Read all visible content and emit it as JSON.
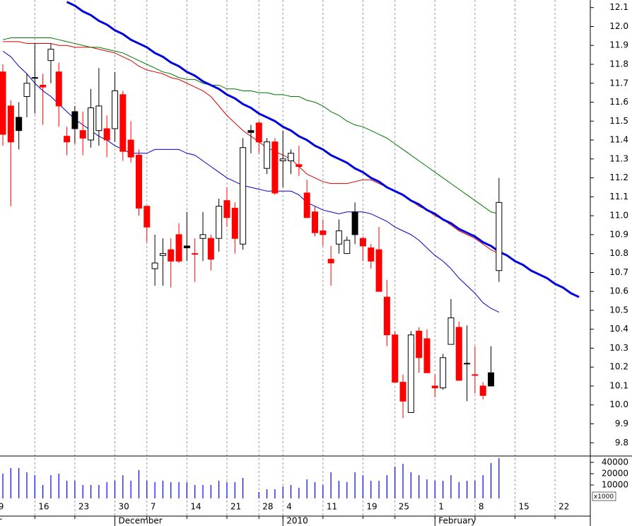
{
  "chart_data": {
    "type": "candlestick",
    "categories": [
      "9",
      null,
      null,
      null,
      null,
      "16",
      null,
      null,
      null,
      null,
      "23",
      null,
      null,
      null,
      null,
      "30",
      null,
      null,
      null,
      "7",
      null,
      null,
      null,
      null,
      "14",
      null,
      null,
      null,
      null,
      "21",
      null,
      null,
      null,
      "28",
      null,
      null,
      "4",
      null,
      null,
      null,
      null,
      "11",
      null,
      null,
      null,
      null,
      "19",
      null,
      null,
      null,
      "25",
      null,
      null,
      null,
      null,
      "1",
      null,
      null,
      null,
      null,
      "8",
      null,
      null,
      null,
      null,
      "15",
      null,
      null,
      null,
      null,
      "22",
      null,
      null,
      null,
      null
    ],
    "months": [
      "r",
      null,
      null,
      null,
      null,
      null,
      null,
      null,
      null,
      null,
      null,
      null,
      null,
      null,
      null,
      "December",
      null,
      null,
      null,
      null,
      null,
      null,
      null,
      null,
      null,
      null,
      null,
      null,
      null,
      null,
      null,
      null,
      null,
      null,
      null,
      null,
      "2010",
      null,
      null,
      null,
      null,
      null,
      null,
      null,
      null,
      null,
      null,
      null,
      null,
      null,
      null,
      null,
      null,
      null,
      null,
      "February",
      null,
      null,
      null,
      null,
      null,
      null,
      null,
      null,
      null,
      null,
      null,
      null,
      null,
      null,
      null,
      null,
      null,
      null,
      null
    ],
    "open": [
      null,
      11.76,
      11.58,
      11.52,
      11.63,
      11.73,
      11.69,
      11.82,
      11.76,
      11.42,
      11.55,
      11.45,
      11.4,
      11.45,
      11.46,
      11.46,
      11.64,
      11.4,
      11.32,
      11.05,
      10.72,
      10.79,
      10.82,
      10.9,
      10.84,
      10.8,
      10.88,
      10.88,
      10.88,
      11.08,
      11.04,
      10.85,
      11.45,
      11.49,
      11.25,
      11.39,
      11.29,
      11.29,
      11.27,
      11.12,
      11.02,
      10.92,
      10.77,
      10.85,
      10.8,
      11.02,
      10.88,
      10.83,
      10.82,
      10.57,
      10.37,
      10.12,
      9.96,
      10.39,
      10.35,
      10.1,
      10.09,
      10.32,
      10.41,
      10.22,
      10.16,
      10.1,
      10.17,
      10.71,
      null,
      null,
      null,
      null,
      null,
      null,
      null,
      null,
      null,
      null,
      null
    ],
    "high": [
      null,
      11.8,
      11.61,
      11.6,
      11.75,
      11.91,
      11.75,
      11.91,
      11.81,
      11.47,
      11.58,
      11.55,
      11.67,
      11.78,
      11.53,
      11.76,
      11.66,
      11.5,
      11.35,
      11.05,
      10.9,
      10.88,
      10.88,
      10.96,
      11.02,
      10.88,
      11.02,
      10.9,
      11.09,
      11.15,
      11.07,
      11.41,
      11.48,
      11.5,
      11.41,
      11.41,
      11.45,
      11.35,
      11.37,
      11.19,
      11.05,
      10.98,
      10.84,
      10.98,
      10.89,
      11.07,
      10.89,
      10.85,
      10.94,
      10.66,
      10.39,
      10.16,
      10.39,
      10.41,
      10.4,
      10.16,
      10.27,
      10.56,
      10.44,
      10.42,
      10.31,
      10.12,
      10.31,
      11.2,
      null,
      null,
      null,
      null,
      null,
      null,
      null,
      null,
      null,
      null,
      null
    ],
    "low": [
      null,
      11.37,
      11.05,
      11.35,
      11.52,
      11.54,
      11.48,
      11.7,
      11.47,
      11.32,
      11.38,
      11.32,
      11.36,
      11.37,
      11.31,
      11.39,
      11.29,
      11.28,
      11.0,
      10.86,
      10.63,
      10.63,
      10.62,
      10.75,
      10.76,
      10.65,
      10.76,
      10.71,
      10.81,
      10.94,
      10.8,
      10.82,
      11.33,
      11.33,
      11.22,
      11.11,
      11.15,
      11.22,
      11.21,
      10.99,
      10.89,
      10.84,
      10.63,
      10.8,
      10.8,
      10.85,
      10.76,
      10.72,
      10.6,
      10.31,
      10.12,
      9.93,
      9.96,
      10.17,
      10.17,
      10.04,
      10.08,
      10.32,
      10.13,
      10.02,
      10.06,
      10.03,
      10.1,
      10.65,
      null,
      null,
      null,
      null,
      null,
      null,
      null,
      null,
      null,
      null,
      null
    ],
    "close": [
      null,
      11.43,
      11.39,
      11.45,
      11.7,
      11.73,
      11.68,
      11.88,
      11.58,
      11.39,
      11.46,
      11.41,
      11.57,
      11.58,
      11.4,
      11.66,
      11.34,
      11.31,
      11.04,
      10.94,
      10.75,
      10.8,
      10.76,
      10.76,
      10.83,
      10.8,
      10.9,
      10.77,
      11.05,
      10.99,
      10.88,
      11.36,
      11.44,
      11.39,
      11.39,
      11.12,
      11.3,
      11.33,
      11.26,
      10.99,
      10.91,
      10.9,
      10.75,
      10.92,
      10.87,
      10.9,
      10.84,
      10.76,
      10.6,
      10.37,
      10.12,
      10.02,
      10.37,
      10.25,
      10.17,
      10.09,
      10.25,
      10.46,
      10.13,
      10.22,
      10.16,
      10.05,
      10.1,
      11.07,
      null,
      null,
      null,
      null,
      null,
      null,
      null,
      null,
      null,
      null,
      null
    ],
    "colors": [
      null,
      "#ff0000",
      "#ff0000",
      "#000000",
      "#ffffff",
      "#ffffff",
      "#ff0000",
      "#ffffff",
      "#ff0000",
      "#ff0000",
      "#000000",
      "#ff0000",
      "#ffffff",
      "#ffffff",
      "#ff0000",
      "#ffffff",
      "#ff0000",
      "#ff0000",
      "#ff0000",
      "#ff0000",
      "#ffffff",
      "#ffffff",
      "#ff0000",
      "#ff0000",
      "#000000",
      "#ff0000",
      "#ffffff",
      "#ff0000",
      "#ffffff",
      "#ff0000",
      "#ff0000",
      "#ffffff",
      "#000000",
      "#ff0000",
      "#ffffff",
      "#ff0000",
      "#ffffff",
      "#ffffff",
      "#ff0000",
      "#ff0000",
      "#ff0000",
      "#ff0000",
      "#ff0000",
      "#ffffff",
      "#ffffff",
      "#000000",
      "#ff0000",
      "#ff0000",
      "#ff0000",
      "#ff0000",
      "#ff0000",
      "#ff0000",
      "#ffffff",
      "#ff0000",
      "#ff0000",
      "#ff0000",
      "#ffffff",
      "#ffffff",
      "#ff0000",
      "#000000",
      "#ff0000",
      "#ff0000",
      "#000000",
      "#ffffff",
      null,
      null,
      null,
      null,
      null,
      null,
      null,
      null,
      null,
      null,
      null
    ],
    "series": [
      {
        "color": "#0000cc",
        "line_width": 1,
        "values": [
          null,
          11.87,
          11.84,
          11.79,
          11.75,
          11.7,
          11.66,
          11.63,
          11.59,
          11.55,
          11.51,
          11.48,
          11.45,
          11.42,
          11.4,
          11.37,
          11.35,
          11.33,
          11.33,
          11.33,
          11.35,
          11.35,
          11.35,
          11.35,
          11.33,
          11.32,
          11.29,
          11.26,
          11.23,
          11.2,
          11.18,
          11.16,
          11.15,
          11.14,
          11.13,
          11.13,
          11.13,
          11.13,
          11.11,
          11.07,
          11.05,
          11.03,
          11.02,
          11.01,
          11.02,
          11.02,
          11.02,
          11.01,
          10.99,
          10.97,
          10.94,
          10.92,
          10.9,
          10.87,
          10.83,
          10.79,
          10.76,
          10.72,
          10.67,
          10.63,
          10.59,
          10.54,
          10.51,
          10.49,
          null,
          null,
          null,
          null,
          null,
          null,
          null,
          null,
          null,
          null,
          null
        ]
      },
      {
        "color": "#dd0000",
        "line_width": 1,
        "values": [
          null,
          11.92,
          11.92,
          11.92,
          11.91,
          11.91,
          11.91,
          11.91,
          11.9,
          11.9,
          11.89,
          11.89,
          11.89,
          11.88,
          11.87,
          11.86,
          11.84,
          11.82,
          11.79,
          11.77,
          11.76,
          11.75,
          11.73,
          11.72,
          11.7,
          11.68,
          11.66,
          11.63,
          11.58,
          11.53,
          11.49,
          11.45,
          11.42,
          11.39,
          11.36,
          11.34,
          11.32,
          11.3,
          11.26,
          11.22,
          11.2,
          11.18,
          11.17,
          11.17,
          11.17,
          11.18,
          11.19,
          11.19,
          11.17,
          11.15,
          11.13,
          11.11,
          11.08,
          11.05,
          11.03,
          11.0,
          10.98,
          10.95,
          10.92,
          10.9,
          10.88,
          10.85,
          10.82,
          10.8,
          null,
          null,
          null,
          null,
          null,
          null,
          null,
          null,
          null,
          null,
          null
        ]
      },
      {
        "color": "#007700",
        "line_width": 1,
        "values": [
          null,
          11.93,
          11.94,
          11.94,
          11.94,
          11.94,
          11.94,
          11.94,
          11.93,
          11.92,
          11.91,
          11.9,
          11.89,
          11.89,
          11.88,
          11.87,
          11.86,
          11.84,
          11.82,
          11.8,
          11.78,
          11.76,
          11.75,
          11.73,
          11.72,
          11.72,
          11.7,
          11.69,
          11.69,
          11.67,
          11.67,
          11.66,
          11.66,
          11.65,
          11.65,
          11.64,
          11.64,
          11.63,
          11.63,
          11.61,
          11.6,
          11.58,
          11.55,
          11.53,
          11.5,
          11.48,
          11.47,
          11.45,
          11.43,
          11.41,
          11.38,
          11.35,
          11.32,
          11.29,
          11.26,
          11.23,
          11.2,
          11.17,
          11.14,
          11.11,
          11.08,
          11.05,
          11.02,
          11.01,
          null,
          null,
          null,
          null,
          null,
          null,
          null,
          null,
          null,
          null,
          null
        ]
      },
      {
        "color": "#0000dd",
        "line_width": 3,
        "values": [
          null,
          null,
          null,
          null,
          null,
          null,
          null,
          null,
          null,
          12.13,
          12.11,
          12.08,
          12.06,
          12.03,
          12.01,
          11.98,
          11.96,
          11.93,
          11.91,
          11.89,
          11.86,
          11.84,
          11.81,
          11.79,
          11.76,
          11.74,
          11.71,
          11.69,
          11.67,
          11.64,
          11.62,
          11.59,
          11.57,
          11.54,
          11.52,
          11.5,
          11.47,
          11.45,
          11.42,
          11.4,
          11.37,
          11.35,
          11.32,
          11.3,
          11.28,
          11.25,
          11.23,
          11.2,
          11.18,
          11.15,
          11.13,
          11.11,
          11.08,
          11.06,
          11.03,
          11.01,
          10.98,
          10.96,
          10.93,
          10.91,
          10.89,
          10.86,
          10.84,
          10.81,
          10.79,
          10.76,
          10.74,
          10.71,
          10.69,
          10.67,
          10.64,
          10.62,
          10.59,
          10.57,
          null
        ]
      }
    ],
    "ylim": [
      9.73,
      12.14
    ],
    "yticks": [
      9.8,
      9.9,
      {
        "value": 10.0,
        "label": "10.0"
      },
      10.1,
      10.2,
      10.3,
      10.4,
      10.5,
      10.6,
      10.7,
      10.8,
      10.9,
      {
        "value": 11.0,
        "label": "11.0"
      },
      11.1,
      11.2,
      11.3,
      11.4,
      11.5,
      11.6,
      11.7,
      11.8,
      11.9,
      {
        "value": 12.0,
        "label": "12.0"
      },
      12.1
    ],
    "x_grid": true,
    "volume": {
      "color": "#0000ff",
      "log_scale": true,
      "unit_label": "x1000",
      "ylim": [
        4400,
        59000
      ],
      "yticks": [
        10000,
        20000,
        40000
      ],
      "values": [
        null,
        20000,
        28300,
        28300,
        21800,
        18300,
        10000,
        18300,
        20000,
        13000,
        13000,
        10000,
        10000,
        10000,
        11900,
        13000,
        18300,
        13000,
        24900,
        13000,
        11900,
        13000,
        11900,
        11900,
        11900,
        10000,
        10000,
        10000,
        13000,
        11900,
        11900,
        15400,
        null,
        6480,
        7710,
        7710,
        9170,
        10000,
        8410,
        14100,
        11900,
        10000,
        21800,
        13000,
        11900,
        21800,
        18300,
        13000,
        13000,
        18300,
        30800,
        36700,
        21800,
        18300,
        14100,
        13000,
        13000,
        18300,
        11900,
        13000,
        13000,
        18300,
        38300,
        51900,
        null,
        null,
        null,
        null,
        null,
        null,
        null,
        null,
        null,
        null,
        null
      ]
    }
  }
}
